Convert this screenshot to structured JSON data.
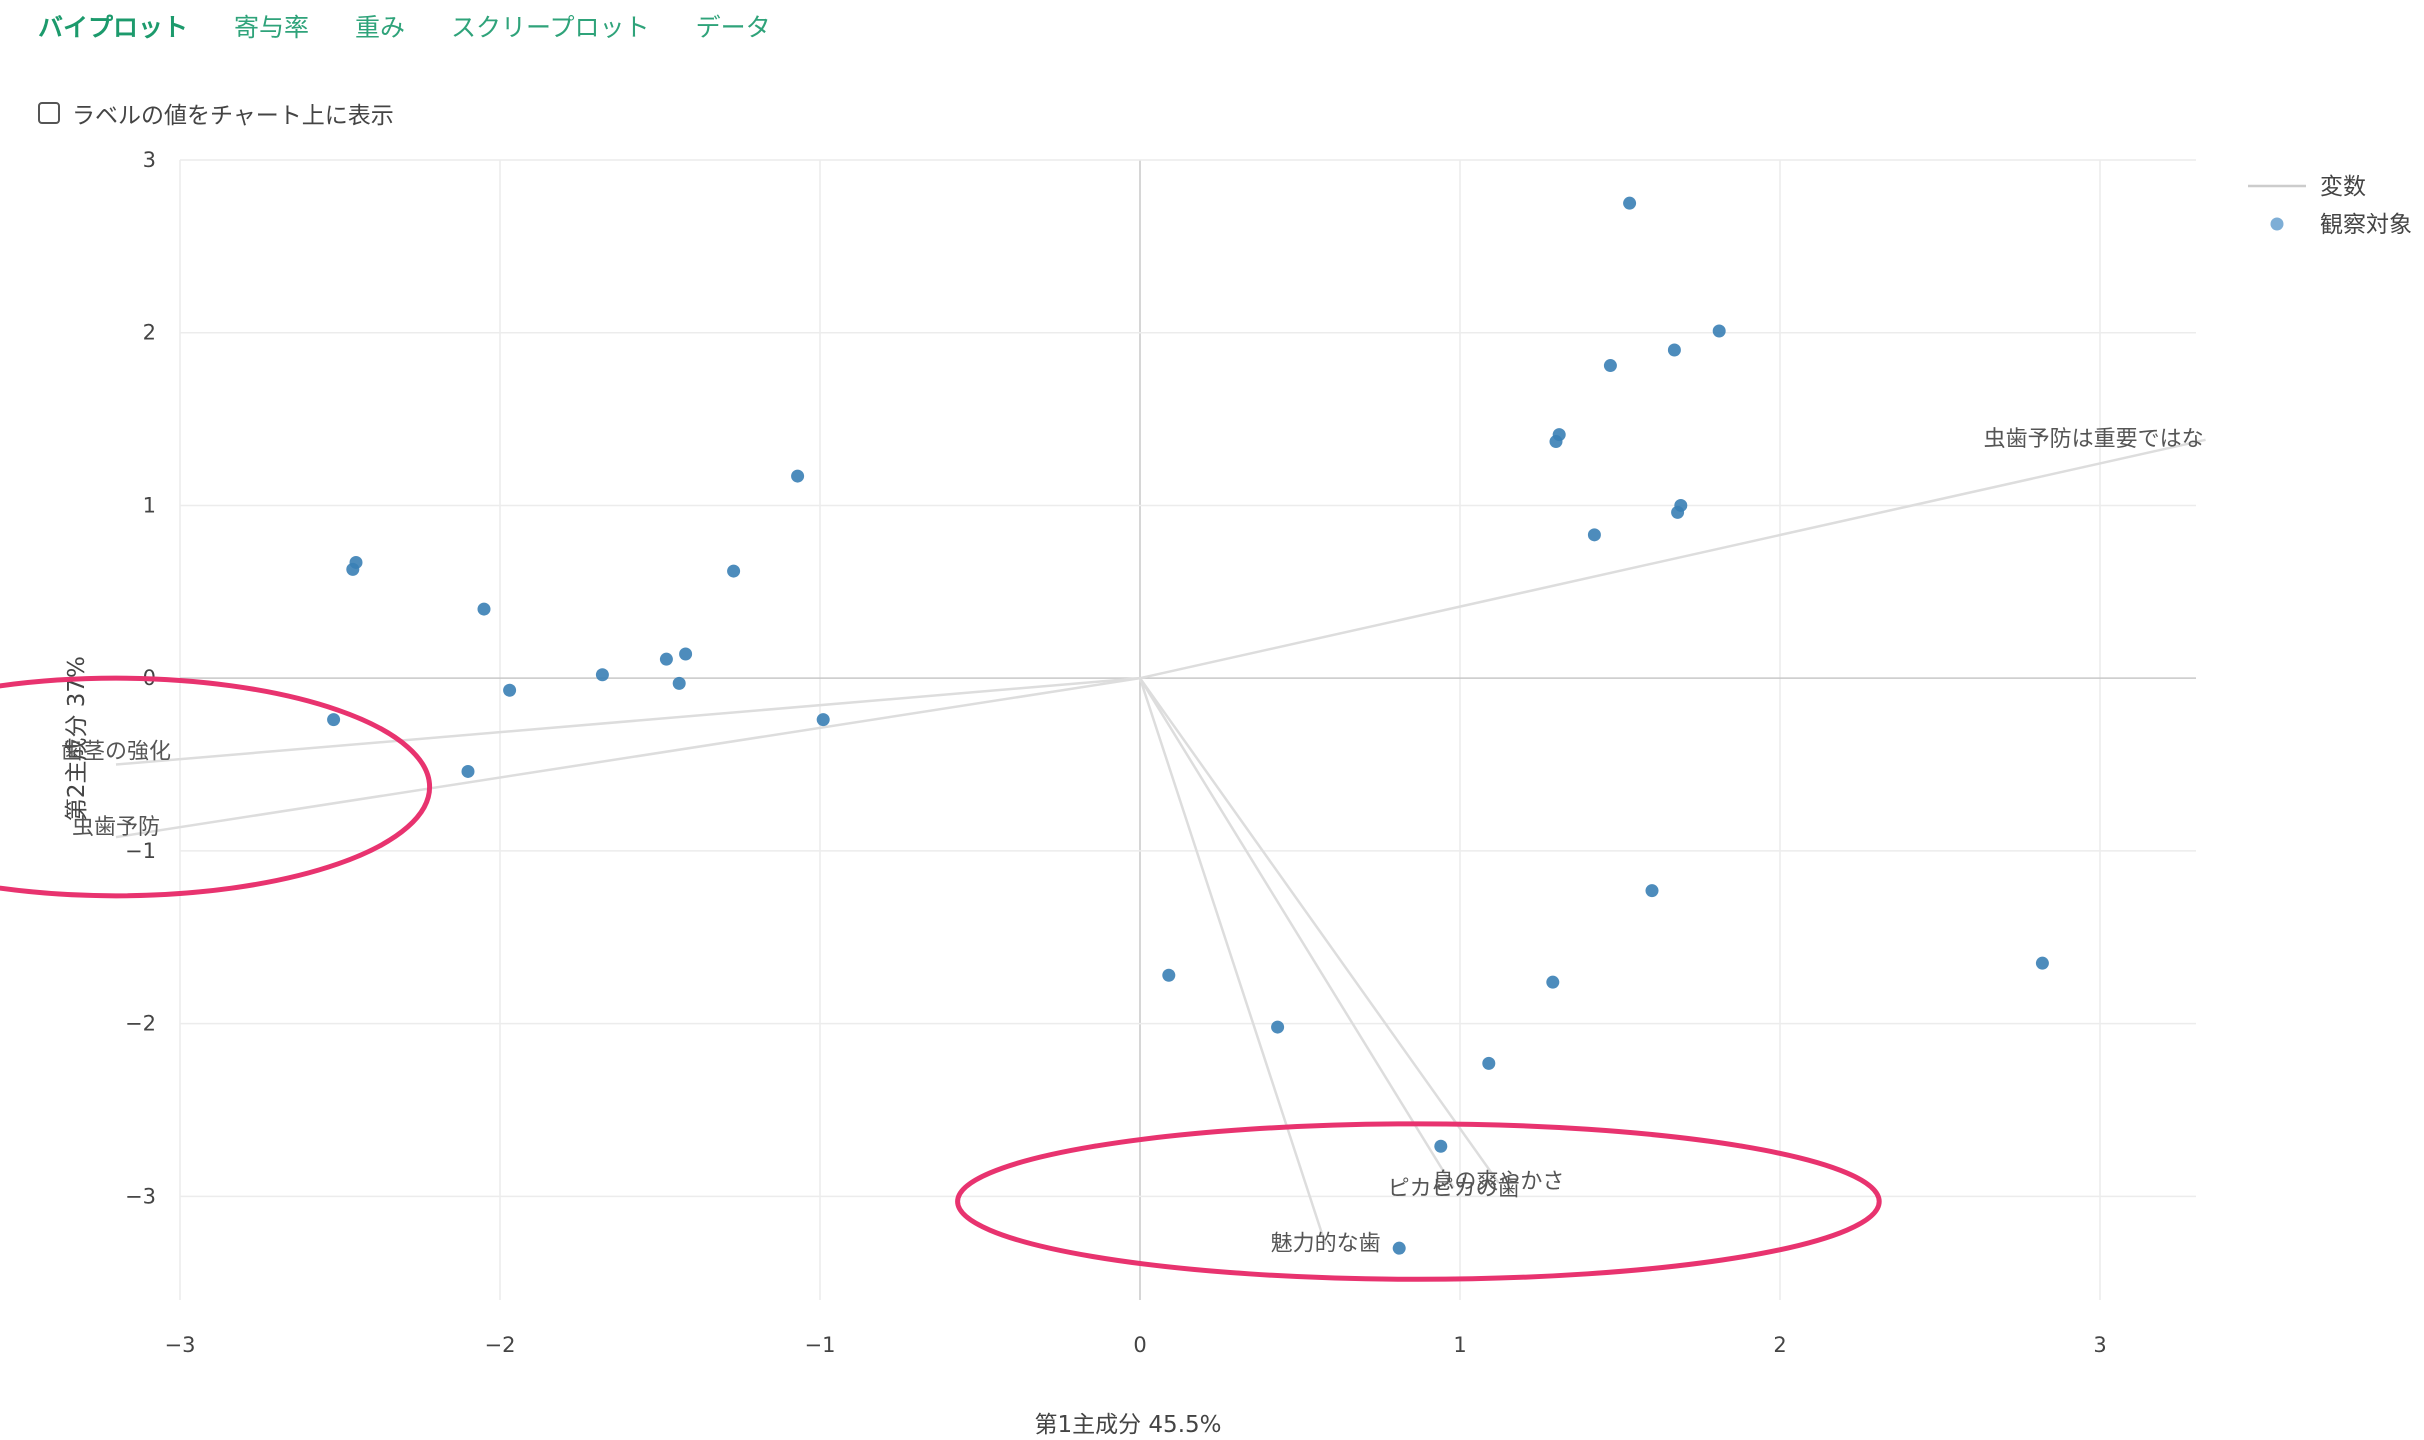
{
  "tabs": [
    {
      "label": "バイプロット",
      "active": true
    },
    {
      "label": "寄与率",
      "active": false
    },
    {
      "label": "重み",
      "active": false
    },
    {
      "label": "スクリープロット",
      "active": false
    },
    {
      "label": "データ",
      "active": false
    }
  ],
  "options": {
    "show_labels_label": "ラベルの値をチャート上に表示",
    "show_labels_checked": false
  },
  "colors": {
    "accent": "#1c9a6c",
    "point": "#3a7fb5",
    "vector": "#dddddd",
    "annotation": "#e8336f"
  },
  "chart_data": {
    "type": "scatter",
    "xlabel": "第1主成分 45.5%",
    "ylabel": "第2主成分 37%",
    "xlim": [
      -3.0,
      3.3
    ],
    "ylim": [
      -3.6,
      3.0
    ],
    "xticks": [
      -3,
      -2,
      -1,
      0,
      1,
      2,
      3
    ],
    "yticks": [
      -3,
      -2,
      -1,
      0,
      1,
      2,
      3
    ],
    "xtick_labels": [
      "−3",
      "−2",
      "−1",
      "0",
      "1",
      "2",
      "3"
    ],
    "ytick_labels": [
      "−3",
      "−2",
      "−1",
      "0",
      "1",
      "2",
      "3"
    ],
    "grid": true,
    "legend": {
      "placement": "top-right",
      "entries": [
        {
          "name": "変数",
          "symbol": "line"
        },
        {
          "name": "観察対象",
          "symbol": "dot"
        }
      ]
    },
    "variables": [
      {
        "name": "虫歯予防は重要ではな",
        "x": 3.33,
        "y": 1.38
      },
      {
        "name": "歯茎の強化",
        "x": -3.2,
        "y": -0.5
      },
      {
        "name": "虫歯予防",
        "x": -3.2,
        "y": -0.92
      },
      {
        "name": "息の爽やかさ",
        "x": 1.12,
        "y": -2.92
      },
      {
        "name": "ピカピカの歯",
        "x": 0.98,
        "y": -2.95
      },
      {
        "name": "魅力的な歯",
        "x": 0.58,
        "y": -3.28
      }
    ],
    "observations": [
      {
        "x": 1.53,
        "y": 2.75
      },
      {
        "x": 1.81,
        "y": 2.01
      },
      {
        "x": 1.67,
        "y": 1.9
      },
      {
        "x": 1.47,
        "y": 1.81
      },
      {
        "x": 1.31,
        "y": 1.41
      },
      {
        "x": 1.3,
        "y": 1.37
      },
      {
        "x": 1.69,
        "y": 1.0
      },
      {
        "x": 1.68,
        "y": 0.96
      },
      {
        "x": 1.42,
        "y": 0.83
      },
      {
        "x": -1.07,
        "y": 1.17
      },
      {
        "x": -1.27,
        "y": 0.62
      },
      {
        "x": -2.45,
        "y": 0.67
      },
      {
        "x": -2.46,
        "y": 0.63
      },
      {
        "x": -2.05,
        "y": 0.4
      },
      {
        "x": -1.48,
        "y": 0.11
      },
      {
        "x": -1.42,
        "y": 0.14
      },
      {
        "x": -1.44,
        "y": -0.03
      },
      {
        "x": -1.68,
        "y": 0.02
      },
      {
        "x": -1.97,
        "y": -0.07
      },
      {
        "x": -2.52,
        "y": -0.24
      },
      {
        "x": -2.1,
        "y": -0.54
      },
      {
        "x": -0.99,
        "y": -0.24
      },
      {
        "x": 1.6,
        "y": -1.23
      },
      {
        "x": 2.82,
        "y": -1.65
      },
      {
        "x": 0.09,
        "y": -1.72
      },
      {
        "x": 1.29,
        "y": -1.76
      },
      {
        "x": 0.43,
        "y": -2.02
      },
      {
        "x": 1.09,
        "y": -2.23
      },
      {
        "x": 0.94,
        "y": -2.71
      },
      {
        "x": 0.81,
        "y": -3.3
      }
    ],
    "annotations": [
      {
        "shape": "ellipse",
        "cx": -3.2,
        "cy": -0.63,
        "rx": 0.98,
        "ry": 0.63
      },
      {
        "shape": "ellipse",
        "cx": 0.87,
        "cy": -3.03,
        "rx": 1.44,
        "ry": 0.45
      }
    ]
  }
}
